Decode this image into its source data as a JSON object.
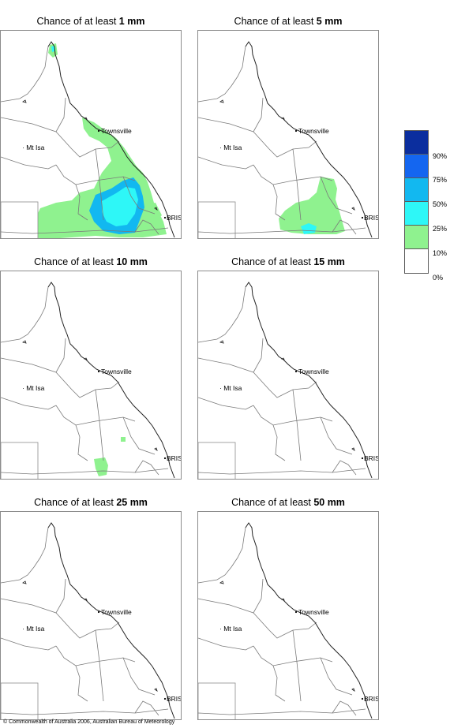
{
  "panels": [
    {
      "title_prefix": "Chance of at least",
      "amount": "1 mm"
    },
    {
      "title_prefix": "Chance of at least",
      "amount": "5 mm"
    },
    {
      "title_prefix": "Chance of at least",
      "amount": "10 mm"
    },
    {
      "title_prefix": "Chance of at least",
      "amount": "15 mm"
    },
    {
      "title_prefix": "Chance of at least",
      "amount": "25 mm"
    },
    {
      "title_prefix": "Chance of at least",
      "amount": "50 mm"
    }
  ],
  "places": {
    "townsville": "Townsville",
    "mt_isa": "Mt Isa",
    "brisbane": "BRIS"
  },
  "legend": {
    "labels": [
      "90%",
      "75%",
      "50%",
      "25%",
      "10%",
      "0%"
    ],
    "colors": [
      "#0b2e9e",
      "#1466f0",
      "#12b8f0",
      "#2ef7f7",
      "#8ff28f",
      "#ffffff"
    ]
  },
  "footer": "© Commonwealth of Australia 2006, Australian Bureau of Meteorology"
}
